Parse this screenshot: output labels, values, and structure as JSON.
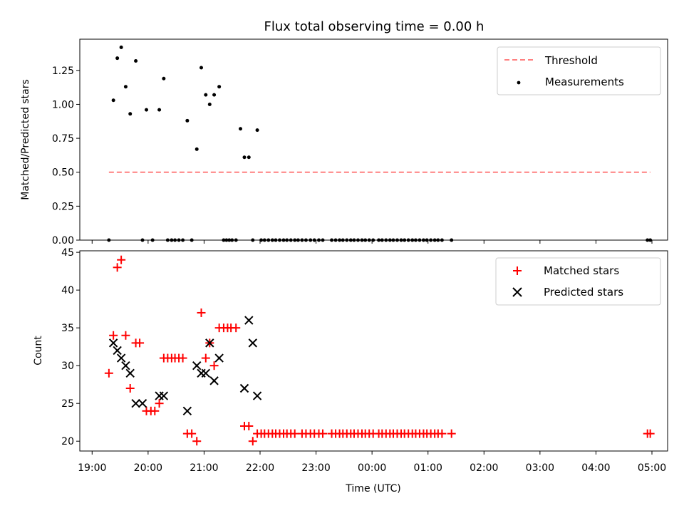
{
  "chart_data": [
    {
      "type": "scatter",
      "title": "Flux total observing time = 0.00 h",
      "xlabel": "",
      "ylabel": "Matched/Predicted stars",
      "xlim_hours": [
        18.78,
        29.28
      ],
      "ylim": [
        0,
        1.48
      ],
      "yticks": [
        0.0,
        0.25,
        0.5,
        0.75,
        1.0,
        1.25
      ],
      "ytick_labels": [
        "0.00",
        "0.25",
        "0.50",
        "0.75",
        "1.00",
        "1.25"
      ],
      "grid": false,
      "legend_position": "upper right",
      "threshold": {
        "name": "Threshold",
        "color": "#ff8080",
        "value": 0.5,
        "x_range_hours": [
          19.3,
          28.97
        ]
      },
      "measurements": {
        "name": "Measurements",
        "color": "#000000",
        "x_hours": [
          19.3,
          19.38,
          19.45,
          19.52,
          19.6,
          19.68,
          19.78,
          19.9,
          19.97,
          20.08,
          20.2,
          20.28,
          20.35,
          20.42,
          20.48,
          20.55,
          20.62,
          20.7,
          20.78,
          20.87,
          20.95,
          21.03,
          21.1,
          21.18,
          21.27,
          21.35,
          21.4,
          21.45,
          21.5,
          21.57,
          21.65,
          21.72,
          21.8,
          21.87,
          21.95,
          22.02,
          22.08,
          22.15,
          22.22,
          22.28,
          22.35,
          22.42,
          22.48,
          22.55,
          22.62,
          22.68,
          22.75,
          22.82,
          22.9,
          22.97,
          23.05,
          23.12,
          23.28,
          23.35,
          23.42,
          23.48,
          23.55,
          23.62,
          23.68,
          23.75,
          23.82,
          23.88,
          23.95,
          24.02,
          24.12,
          24.18,
          24.25,
          24.32,
          24.38,
          24.45,
          24.52,
          24.58,
          24.65,
          24.72,
          24.78,
          24.85,
          24.92,
          24.98,
          25.05,
          25.12,
          25.18,
          25.25,
          25.42,
          28.92,
          28.97
        ],
        "y": [
          0.0,
          1.03,
          1.34,
          1.42,
          1.13,
          0.93,
          1.32,
          0.0,
          0.96,
          0.0,
          0.96,
          1.19,
          0.0,
          0.0,
          0.0,
          0.0,
          0.0,
          0.88,
          0.0,
          0.67,
          1.27,
          1.07,
          1.0,
          1.07,
          1.13,
          0.0,
          0.0,
          0.0,
          0.0,
          0.0,
          0.82,
          0.61,
          0.61,
          0.0,
          0.81,
          0.0,
          0.0,
          0.0,
          0.0,
          0.0,
          0.0,
          0.0,
          0.0,
          0.0,
          0.0,
          0.0,
          0.0,
          0.0,
          0.0,
          0.0,
          0.0,
          0.0,
          0.0,
          0.0,
          0.0,
          0.0,
          0.0,
          0.0,
          0.0,
          0.0,
          0.0,
          0.0,
          0.0,
          0.0,
          0.0,
          0.0,
          0.0,
          0.0,
          0.0,
          0.0,
          0.0,
          0.0,
          0.0,
          0.0,
          0.0,
          0.0,
          0.0,
          0.0,
          0.0,
          0.0,
          0.0,
          0.0,
          0.0,
          0.0,
          0.0
        ]
      }
    },
    {
      "type": "scatter",
      "title": "",
      "xlabel": "Time (UTC)",
      "ylabel": "Count",
      "xlim_hours": [
        18.78,
        29.28
      ],
      "ylim": [
        18.7,
        45.2
      ],
      "yticks": [
        20,
        25,
        30,
        35,
        40,
        45
      ],
      "ytick_labels": [
        "20",
        "25",
        "30",
        "35",
        "40",
        "45"
      ],
      "xticks_hours": [
        19,
        20,
        21,
        22,
        23,
        24,
        25,
        26,
        27,
        28,
        29
      ],
      "xtick_labels": [
        "19:00",
        "20:00",
        "21:00",
        "22:00",
        "23:00",
        "00:00",
        "01:00",
        "02:00",
        "03:00",
        "04:00",
        "05:00"
      ],
      "grid": false,
      "legend_position": "upper right",
      "series": [
        {
          "name": "Matched stars",
          "marker": "+",
          "color": "#ff0000",
          "x_hours": [
            19.3,
            19.38,
            19.45,
            19.52,
            19.6,
            19.68,
            19.78,
            19.85,
            19.97,
            20.05,
            20.12,
            20.2,
            20.28,
            20.35,
            20.42,
            20.48,
            20.55,
            20.62,
            20.7,
            20.78,
            20.87,
            20.95,
            21.03,
            21.1,
            21.18,
            21.27,
            21.35,
            21.42,
            21.48,
            21.57,
            21.72,
            21.8,
            21.87,
            21.95,
            22.02,
            22.08,
            22.15,
            22.22,
            22.28,
            22.35,
            22.42,
            22.48,
            22.55,
            22.62,
            22.75,
            22.82,
            22.9,
            22.97,
            23.05,
            23.12,
            23.28,
            23.35,
            23.42,
            23.48,
            23.55,
            23.62,
            23.68,
            23.75,
            23.82,
            23.88,
            23.95,
            24.02,
            24.12,
            24.18,
            24.25,
            24.32,
            24.38,
            24.45,
            24.52,
            24.58,
            24.65,
            24.72,
            24.78,
            24.85,
            24.92,
            24.98,
            25.05,
            25.12,
            25.18,
            25.25,
            25.42,
            28.92,
            28.97
          ],
          "y": [
            29,
            34,
            43,
            44,
            34,
            27,
            33,
            33,
            24,
            24,
            24,
            25,
            31,
            31,
            31,
            31,
            31,
            31,
            21,
            21,
            20,
            37,
            31,
            33,
            30,
            35,
            35,
            35,
            35,
            35,
            22,
            22,
            20,
            21,
            21,
            21,
            21,
            21,
            21,
            21,
            21,
            21,
            21,
            21,
            21,
            21,
            21,
            21,
            21,
            21,
            21,
            21,
            21,
            21,
            21,
            21,
            21,
            21,
            21,
            21,
            21,
            21,
            21,
            21,
            21,
            21,
            21,
            21,
            21,
            21,
            21,
            21,
            21,
            21,
            21,
            21,
            21,
            21,
            21,
            21,
            21,
            21,
            21
          ]
        },
        {
          "name": "Predicted stars",
          "marker": "x",
          "color": "#000000",
          "x_hours": [
            19.38,
            19.45,
            19.52,
            19.6,
            19.68,
            19.78,
            19.9,
            20.2,
            20.28,
            20.7,
            20.87,
            20.95,
            21.03,
            21.1,
            21.18,
            21.27,
            21.72,
            21.8,
            21.87,
            21.95
          ],
          "y": [
            33,
            32,
            31,
            30,
            29,
            25,
            25,
            26,
            26,
            24,
            30,
            29,
            29,
            33,
            28,
            31,
            27,
            36,
            33,
            26
          ]
        }
      ]
    }
  ]
}
